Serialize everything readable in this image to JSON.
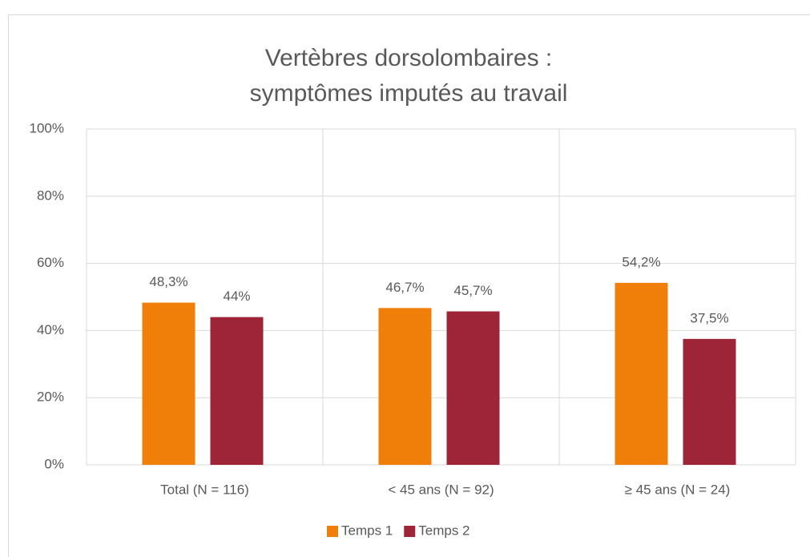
{
  "chart_data": {
    "type": "bar",
    "title": [
      "Vertèbres dorsolombaires :",
      "symptômes imputés au travail"
    ],
    "categories": [
      "Total (N = 116)",
      "< 45 ans (N = 92)",
      "≥ 45 ans (N = 24)"
    ],
    "series": [
      {
        "name": "Temps 1",
        "color": "#f07f09",
        "values": [
          48.3,
          46.7,
          54.2
        ],
        "value_labels": [
          "48,3%",
          "46,7%",
          "54,2%"
        ]
      },
      {
        "name": "Temps 2",
        "color": "#9e2537",
        "values": [
          44,
          45.7,
          37.5
        ],
        "value_labels": [
          "44%",
          "45,7%",
          "37,5%"
        ]
      }
    ],
    "ylim": [
      0,
      100
    ],
    "yticks": [
      {
        "value": 0,
        "label": "0%"
      },
      {
        "value": 20,
        "label": "20%"
      },
      {
        "value": 40,
        "label": "40%"
      },
      {
        "value": 60,
        "label": "60%"
      },
      {
        "value": 80,
        "label": "80%"
      },
      {
        "value": 100,
        "label": "100%"
      }
    ],
    "grid": true,
    "legend": "bottom"
  }
}
